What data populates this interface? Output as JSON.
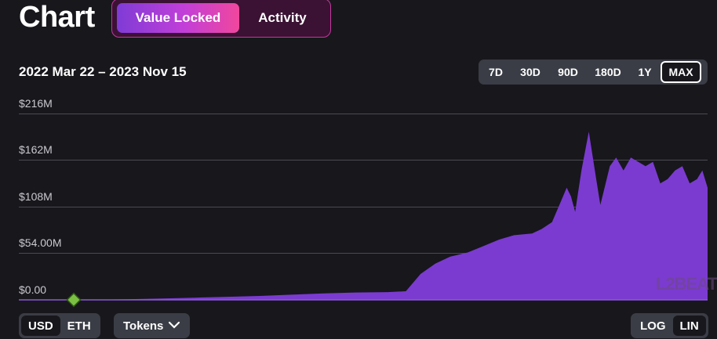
{
  "header": {
    "title": "Chart"
  },
  "metric_toggle": {
    "options": [
      {
        "label": "Value Locked",
        "active": true
      },
      {
        "label": "Activity",
        "active": false
      }
    ]
  },
  "date_range": "2022 Mar 22 – 2023 Nov 15",
  "range_buttons": [
    {
      "label": "7D",
      "active": false
    },
    {
      "label": "30D",
      "active": false
    },
    {
      "label": "90D",
      "active": false
    },
    {
      "label": "180D",
      "active": false
    },
    {
      "label": "1Y",
      "active": false
    },
    {
      "label": "MAX",
      "active": true
    }
  ],
  "bottom_controls": {
    "currency": [
      {
        "label": "USD",
        "active": true
      },
      {
        "label": "ETH",
        "active": false
      }
    ],
    "tokens_label": "Tokens",
    "scale": [
      {
        "label": "LOG",
        "active": false
      },
      {
        "label": "LIN",
        "active": true
      }
    ]
  },
  "watermark": "L2BEAT",
  "colors": {
    "fill": "#7b3bd0",
    "accent_pink": "#f0479d",
    "marker": "#7bc043"
  },
  "chart_data": {
    "type": "area",
    "x_start": "2022-03-22",
    "x_end": "2023-11-15",
    "y_ticks": [
      "$0.00",
      "$54.00M",
      "$108M",
      "$162M",
      "$216M"
    ],
    "ylim": [
      0,
      216
    ],
    "yunit": "M USD",
    "grid": true,
    "marker": {
      "x": "2022-03-22",
      "y": 0
    },
    "x": [
      "2022-03-22",
      "2022-04-15",
      "2022-05-15",
      "2022-06-15",
      "2022-07-15",
      "2022-08-15",
      "2022-09-15",
      "2022-10-15",
      "2022-11-15",
      "2022-12-15",
      "2023-01-15",
      "2023-02-01",
      "2023-02-15",
      "2023-03-01",
      "2023-03-15",
      "2023-04-01",
      "2023-04-15",
      "2023-05-01",
      "2023-05-15",
      "2023-06-01",
      "2023-06-10",
      "2023-06-20",
      "2023-06-27",
      "2023-07-04",
      "2023-07-08",
      "2023-07-12",
      "2023-07-18",
      "2023-07-25",
      "2023-08-01",
      "2023-08-05",
      "2023-08-09",
      "2023-08-14",
      "2023-08-20",
      "2023-08-27",
      "2023-09-03",
      "2023-09-10",
      "2023-09-17",
      "2023-09-24",
      "2023-10-01",
      "2023-10-08",
      "2023-10-15",
      "2023-10-22",
      "2023-10-29",
      "2023-11-05",
      "2023-11-10",
      "2023-11-15"
    ],
    "values": [
      0,
      0.3,
      0.8,
      1.5,
      2.5,
      3.5,
      4.5,
      6,
      7.5,
      8.5,
      9,
      10,
      30,
      42,
      50,
      55,
      62,
      70,
      75,
      77,
      82,
      90,
      110,
      130,
      120,
      102,
      150,
      195,
      140,
      110,
      130,
      155,
      165,
      150,
      165,
      160,
      155,
      160,
      135,
      140,
      150,
      155,
      135,
      140,
      150,
      130
    ]
  }
}
